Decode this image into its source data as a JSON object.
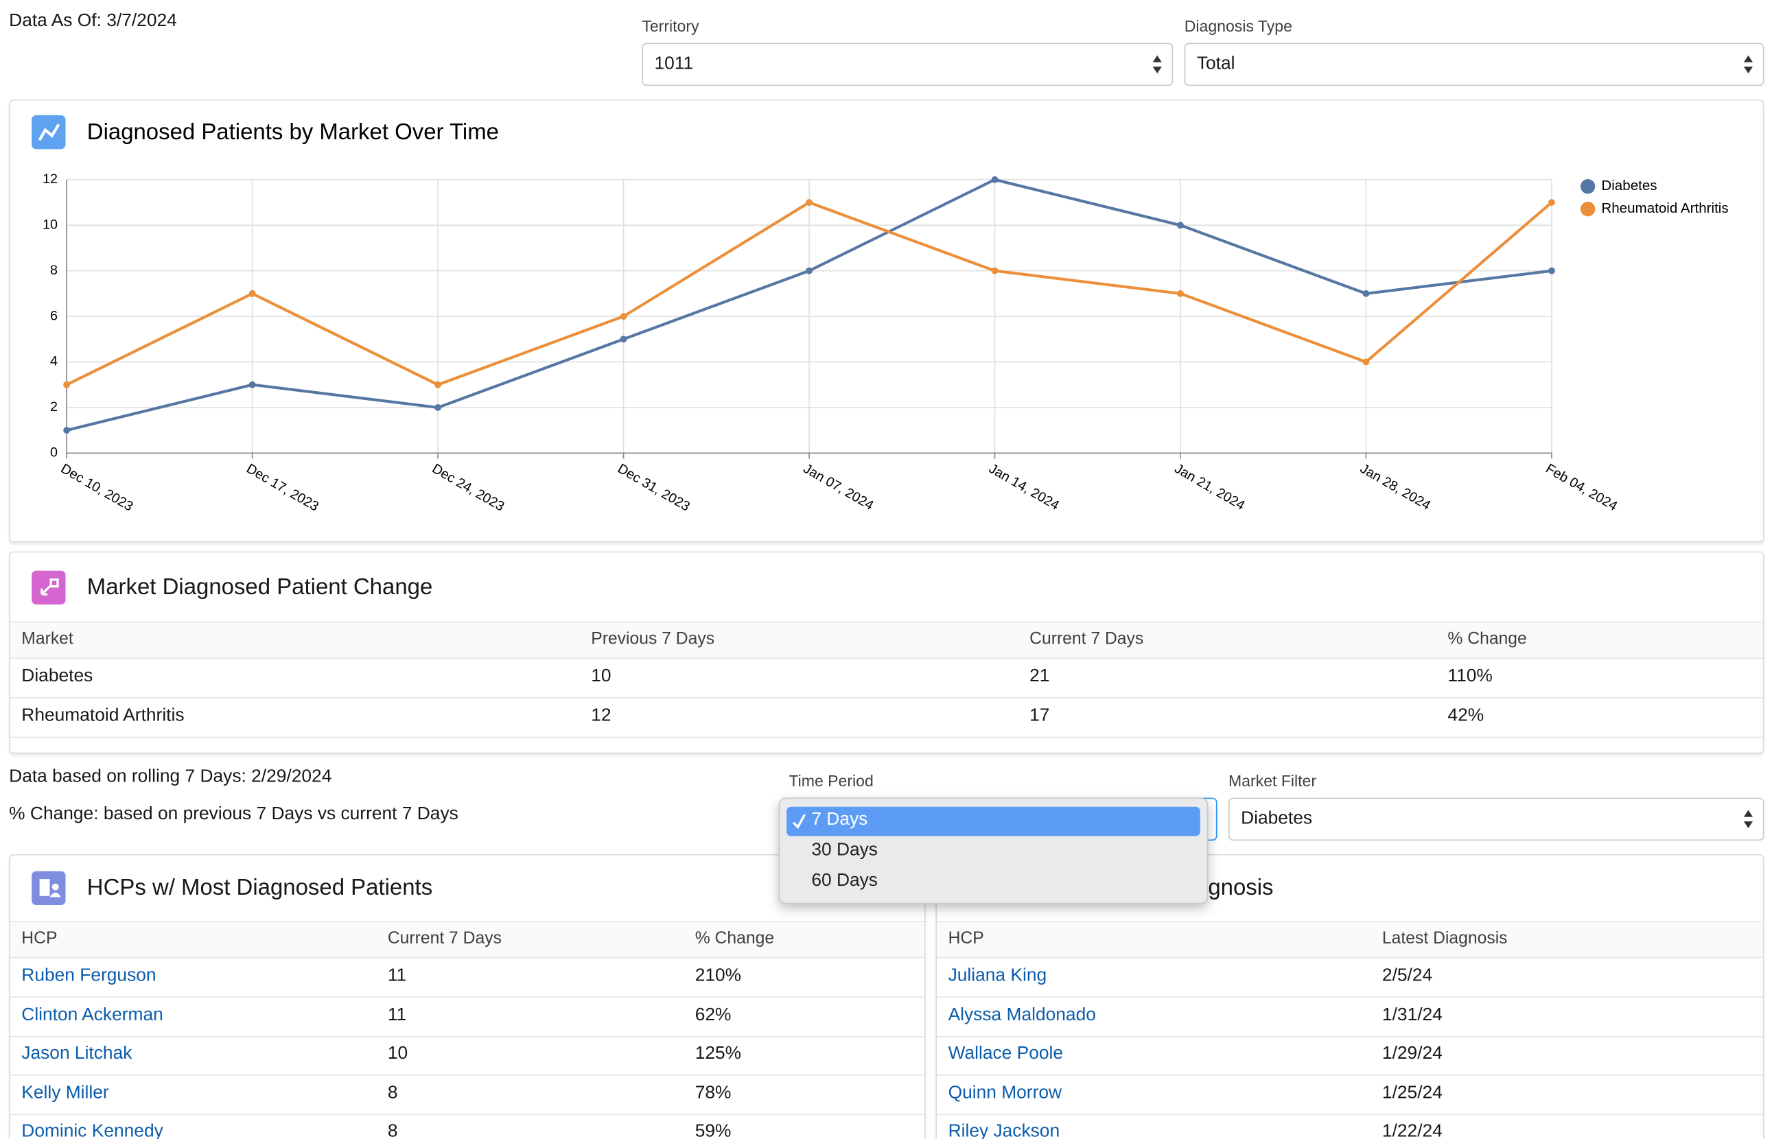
{
  "header": {
    "data_as_of": "Data As Of: 3/7/2024"
  },
  "filters": [
    {
      "label": "Territory",
      "value": "1011"
    },
    {
      "label": "Diagnosis Type",
      "value": "Total"
    }
  ],
  "chart_data": {
    "type": "line",
    "title": "Diagnosed Patients by Market Over Time",
    "x": [
      "Dec 10, 2023",
      "Dec 17, 2023",
      "Dec 24, 2023",
      "Dec 31, 2023",
      "Jan 07, 2024",
      "Jan 14, 2024",
      "Jan 21, 2024",
      "Jan 28, 2024",
      "Feb 04, 2024"
    ],
    "series": [
      {
        "name": "Diabetes",
        "color": "#5677a3",
        "values": [
          1,
          3,
          2,
          5,
          8,
          12,
          10,
          7,
          8
        ]
      },
      {
        "name": "Rheumatoid Arthritis",
        "color": "#eb8f3a",
        "values": [
          3,
          7,
          3,
          6,
          11,
          8,
          7,
          4,
          11
        ]
      }
    ],
    "ylim": [
      0,
      12
    ],
    "yticks": [
      0,
      2,
      4,
      6,
      8,
      10,
      12
    ],
    "grid": true,
    "legend": "right"
  },
  "change_panel": {
    "title": "Market Diagnosed Patient Change",
    "columns": [
      "Market",
      "Previous 7 Days",
      "Current 7 Days",
      "% Change"
    ],
    "rows": [
      [
        "Diabetes",
        "10",
        "21",
        "110%"
      ],
      [
        "Rheumatoid Arthritis",
        "12",
        "17",
        "42%"
      ]
    ]
  },
  "notes": [
    "Data based on rolling 7 Days: 2/29/2024",
    "% Change: based on previous 7 Days vs current 7 Days"
  ],
  "time_period": {
    "label": "Time Period",
    "options": [
      "7 Days",
      "30 Days",
      "60 Days"
    ]
  },
  "market_filter": {
    "label": "Market Filter",
    "value": "Diabetes"
  },
  "hcp_panel": {
    "title": "HCPs w/ Most Diagnosed Patients",
    "columns": [
      "HCP",
      "Current 7 Days",
      "% Change"
    ],
    "rows": [
      [
        "Ruben Ferguson",
        "11",
        "210%"
      ],
      [
        "Clinton Ackerman",
        "11",
        "62%"
      ],
      [
        "Jason Litchak",
        "10",
        "125%"
      ],
      [
        "Kelly Miller",
        "8",
        "78%"
      ],
      [
        "Dominic Kennedy",
        "8",
        "59%"
      ]
    ]
  },
  "latest_panel": {
    "title": "gnosis",
    "columns": [
      "HCP",
      "Latest Diagnosis"
    ],
    "rows": [
      [
        "Juliana King",
        "2/5/24"
      ],
      [
        "Alyssa Maldonado",
        "1/31/24"
      ],
      [
        "Wallace Poole",
        "1/29/24"
      ],
      [
        "Quinn Morrow",
        "1/25/24"
      ],
      [
        "Riley Jackson",
        "1/22/24"
      ]
    ]
  }
}
